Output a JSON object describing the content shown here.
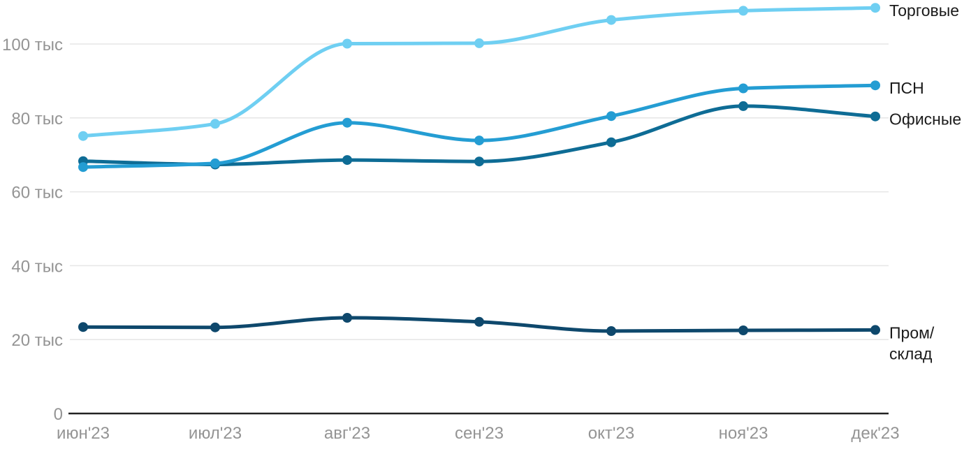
{
  "chart_data": {
    "type": "line",
    "title": "",
    "xlabel": "",
    "ylabel": "",
    "unit": "тыс",
    "categories": [
      "июн'23",
      "июл'23",
      "авг'23",
      "сен'23",
      "окт'23",
      "ноя'23",
      "дек'23"
    ],
    "series": [
      {
        "name": "Торговые",
        "color": "#6FCFF2",
        "values": [
          75.1,
          78.4,
          100.1,
          100.2,
          106.5,
          109.0,
          109.8
        ],
        "label_lines": [
          "Торговые"
        ]
      },
      {
        "name": "ПСН",
        "color": "#249DD3",
        "values": [
          66.7,
          67.7,
          78.7,
          73.9,
          80.5,
          88.0,
          88.8
        ],
        "label_lines": [
          "ПСН"
        ]
      },
      {
        "name": "Офисные",
        "color": "#0E6C95",
        "values": [
          68.3,
          67.4,
          68.6,
          68.2,
          73.4,
          83.2,
          80.4
        ],
        "label_lines": [
          "Офисные"
        ]
      },
      {
        "name": "Пром/склад",
        "color": "#0E486C",
        "values": [
          23.4,
          23.3,
          25.9,
          24.8,
          22.3,
          22.5,
          22.6
        ],
        "label_lines": [
          "Пром/",
          "склад"
        ]
      }
    ],
    "y_ticks": [
      {
        "value": 0,
        "label": "0"
      },
      {
        "value": 20,
        "label": "20 тыс"
      },
      {
        "value": 40,
        "label": "40 тыс"
      },
      {
        "value": 60,
        "label": "60 тыс"
      },
      {
        "value": 80,
        "label": "80 тыс"
      },
      {
        "value": 100,
        "label": "100 тыс"
      }
    ],
    "ylim": [
      0,
      112
    ],
    "grid": true,
    "legend_position": "right-of-line-end"
  },
  "styles": {
    "background": "#FFFFFF",
    "grid_color": "#E6E6E6",
    "axis_line_color": "#222222",
    "axis_label_color": "#949494",
    "legend_text_color": "#1A1A1A"
  }
}
